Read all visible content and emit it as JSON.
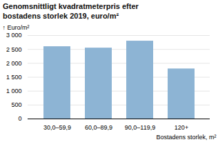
{
  "chart_data": {
    "type": "bar",
    "title": "Genomsnittligt kvadratmeterpris efter\nbostadens storlek 2019, euro/m²",
    "categories": [
      "30,0–59,9",
      "60,0–89,9",
      "90,0–119,9",
      "120+"
    ],
    "values": [
      2600,
      2550,
      2800,
      1800
    ],
    "color": "#8db4d4",
    "xlabel": "Bostadens storlek, m²",
    "ylabel": "Euro/m²",
    "ylim": [
      0,
      3000
    ],
    "yticks": [
      0,
      500,
      {
        "value": 1000,
        "label": "1 000"
      },
      {
        "value": 1500,
        "label": "1 500"
      },
      {
        "value": 2000,
        "label": "2 000"
      },
      {
        "value": 2500,
        "label": "2 500"
      },
      {
        "value": 3000,
        "label": "3 000"
      }
    ],
    "grid": true
  }
}
